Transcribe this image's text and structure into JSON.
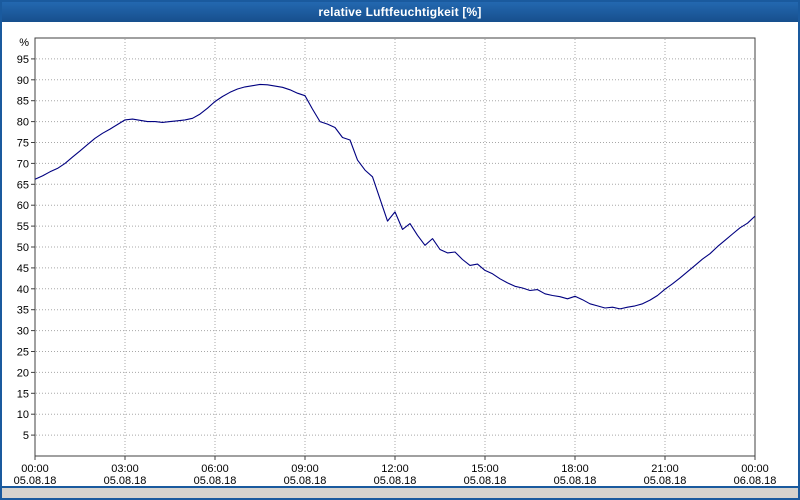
{
  "window": {
    "title": "relative Luftfeuchtigkeit [%]",
    "accent_color": "#1a5a9e"
  },
  "chart_data": {
    "type": "line",
    "title": "relative Luftfeuchtigkeit [%]",
    "ylabel": "%",
    "xlabel": "",
    "ylim": [
      0,
      100
    ],
    "yticks": [
      5,
      10,
      15,
      20,
      25,
      30,
      35,
      40,
      45,
      50,
      55,
      60,
      65,
      70,
      75,
      80,
      85,
      90,
      95
    ],
    "xlim_hours": [
      0,
      24
    ],
    "grid": true,
    "legend": "none",
    "grid_color": "#a8a8a8",
    "frame_color": "#404040",
    "xticks": [
      {
        "hour": 0,
        "time": "00:00",
        "date": "05.08.18"
      },
      {
        "hour": 3,
        "time": "03:00",
        "date": "05.08.18"
      },
      {
        "hour": 6,
        "time": "06:00",
        "date": "05.08.18"
      },
      {
        "hour": 9,
        "time": "09:00",
        "date": "05.08.18"
      },
      {
        "hour": 12,
        "time": "12:00",
        "date": "05.08.18"
      },
      {
        "hour": 15,
        "time": "15:00",
        "date": "05.08.18"
      },
      {
        "hour": 18,
        "time": "18:00",
        "date": "05.08.18"
      },
      {
        "hour": 21,
        "time": "21:00",
        "date": "05.08.18"
      },
      {
        "hour": 24,
        "time": "00:00",
        "date": "06.08.18"
      }
    ],
    "series": [
      {
        "name": "relative Luftfeuchtigkeit",
        "color": "#000080",
        "x": [
          0.0,
          0.25,
          0.5,
          0.75,
          1.0,
          1.25,
          1.5,
          1.75,
          2.0,
          2.25,
          2.5,
          2.75,
          3.0,
          3.25,
          3.5,
          3.75,
          4.0,
          4.25,
          4.5,
          4.75,
          5.0,
          5.25,
          5.5,
          5.75,
          6.0,
          6.25,
          6.5,
          6.75,
          7.0,
          7.25,
          7.5,
          7.75,
          8.0,
          8.25,
          8.5,
          8.75,
          9.0,
          9.25,
          9.5,
          9.75,
          10.0,
          10.25,
          10.5,
          10.75,
          11.0,
          11.25,
          11.5,
          11.75,
          12.0,
          12.25,
          12.5,
          12.75,
          13.0,
          13.25,
          13.5,
          13.75,
          14.0,
          14.25,
          14.5,
          14.75,
          15.0,
          15.25,
          15.5,
          15.75,
          16.0,
          16.25,
          16.5,
          16.75,
          17.0,
          17.25,
          17.5,
          17.75,
          18.0,
          18.25,
          18.5,
          18.75,
          19.0,
          19.25,
          19.5,
          19.75,
          20.0,
          20.25,
          20.5,
          20.75,
          21.0,
          21.25,
          21.5,
          21.75,
          22.0,
          22.25,
          22.5,
          22.75,
          23.0,
          23.25,
          23.5,
          23.75,
          24.0
        ],
        "y": [
          66.2,
          67.0,
          68.0,
          68.8,
          70.0,
          71.5,
          73.0,
          74.5,
          76.0,
          77.2,
          78.2,
          79.3,
          80.4,
          80.6,
          80.3,
          80.0,
          80.0,
          79.8,
          80.0,
          80.2,
          80.4,
          80.8,
          81.8,
          83.2,
          84.8,
          86.0,
          87.0,
          87.8,
          88.3,
          88.6,
          88.9,
          88.8,
          88.5,
          88.2,
          87.6,
          86.8,
          86.2,
          83.0,
          80.0,
          79.4,
          78.6,
          76.2,
          75.6,
          70.8,
          68.4,
          66.8,
          61.5,
          56.2,
          58.4,
          54.2,
          55.6,
          52.8,
          50.4,
          52.0,
          49.4,
          48.6,
          48.8,
          47.0,
          45.6,
          45.9,
          44.4,
          43.6,
          42.4,
          41.4,
          40.6,
          40.2,
          39.6,
          39.8,
          38.8,
          38.4,
          38.1,
          37.6,
          38.2,
          37.4,
          36.4,
          35.9,
          35.4,
          35.6,
          35.2,
          35.6,
          35.9,
          36.4,
          37.3,
          38.4,
          39.9,
          41.2,
          42.6,
          44.1,
          45.6,
          47.1,
          48.4,
          50.1,
          51.6,
          53.1,
          54.6,
          55.7,
          57.4
        ]
      }
    ]
  }
}
